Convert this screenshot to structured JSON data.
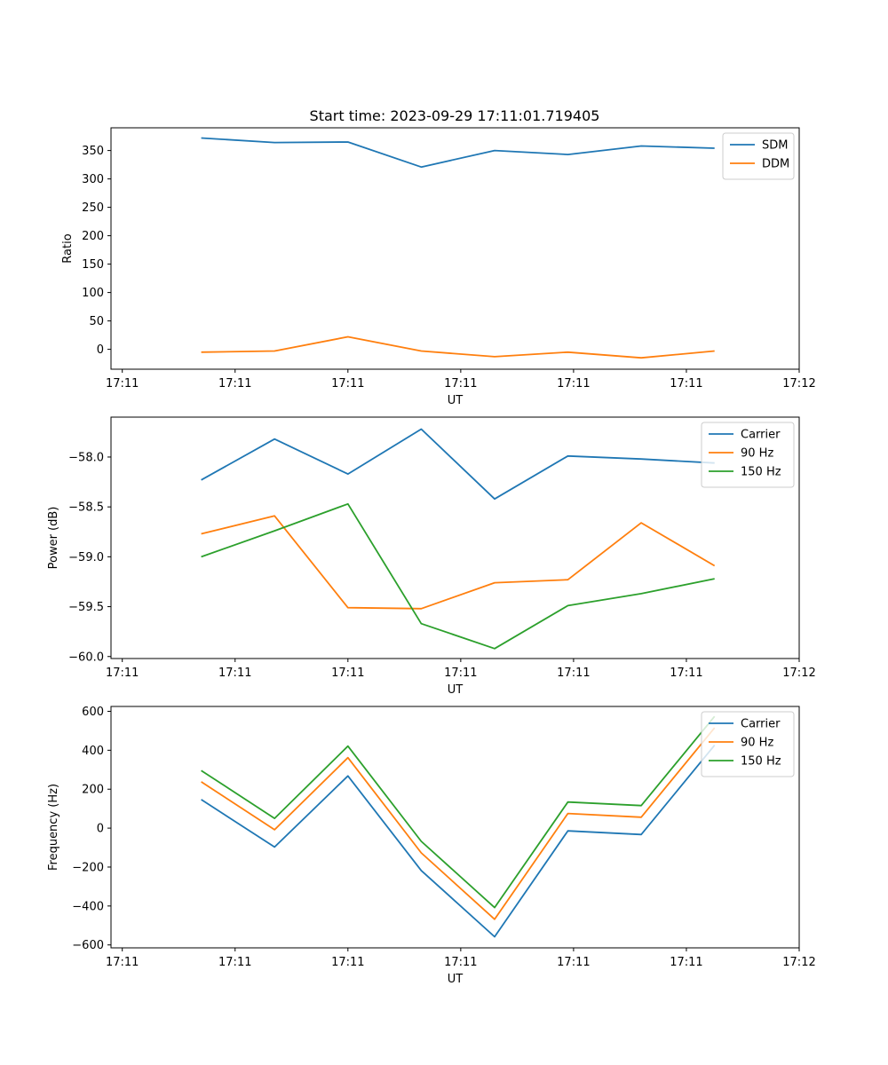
{
  "title": "Start time: 2023-09-29 17:11:01.719405",
  "colors": {
    "blue": "#1f77b4",
    "orange": "#ff7f0e",
    "green": "#2ca02c"
  },
  "chart_data": [
    {
      "type": "line",
      "title": "Start time: 2023-09-29 17:11:01.719405",
      "xlabel": "UT",
      "ylabel": "Ratio",
      "x": [
        0.7,
        1.35,
        2.0,
        2.65,
        3.3,
        3.95,
        4.6,
        5.25
      ],
      "xlim": [
        -0.1,
        6.0
      ],
      "xticks": [
        0,
        1,
        2,
        3,
        4,
        5,
        6
      ],
      "xtick_labels": [
        "17:11",
        "17:11",
        "17:11",
        "17:11",
        "17:11",
        "17:11",
        "17:12"
      ],
      "ylim": [
        -35,
        390
      ],
      "yticks": [
        0,
        50,
        100,
        150,
        200,
        250,
        300,
        350
      ],
      "ytick_labels": [
        "0",
        "50",
        "100",
        "150",
        "200",
        "250",
        "300",
        "350"
      ],
      "legend_position": "top-right",
      "series": [
        {
          "name": "SDM",
          "color": "#1f77b4",
          "values": [
            372,
            364,
            365,
            321,
            350,
            343,
            358,
            354
          ]
        },
        {
          "name": "DDM",
          "color": "#ff7f0e",
          "values": [
            -5,
            -3,
            22,
            -3,
            -13,
            -5,
            -15,
            -3
          ]
        }
      ]
    },
    {
      "type": "line",
      "title": "",
      "xlabel": "UT",
      "ylabel": "Power (dB)",
      "x": [
        0.7,
        1.35,
        2.0,
        2.65,
        3.3,
        3.95,
        4.6,
        5.25
      ],
      "xlim": [
        -0.1,
        6.0
      ],
      "xticks": [
        0,
        1,
        2,
        3,
        4,
        5,
        6
      ],
      "xtick_labels": [
        "17:11",
        "17:11",
        "17:11",
        "17:11",
        "17:11",
        "17:11",
        "17:12"
      ],
      "ylim": [
        -60.02,
        -57.6
      ],
      "yticks": [
        -60.0,
        -59.5,
        -59.0,
        -58.5,
        -58.0
      ],
      "ytick_labels": [
        "−60.0",
        "−59.5",
        "−59.0",
        "−58.5",
        "−58.0"
      ],
      "legend_position": "top-right",
      "series": [
        {
          "name": "Carrier",
          "color": "#1f77b4",
          "values": [
            -58.23,
            -57.82,
            -58.17,
            -57.72,
            -58.42,
            -57.99,
            -58.02,
            -58.06
          ]
        },
        {
          "name": "90 Hz",
          "color": "#ff7f0e",
          "values": [
            -58.77,
            -58.59,
            -59.51,
            -59.52,
            -59.26,
            -59.23,
            -58.66,
            -59.09
          ]
        },
        {
          "name": "150 Hz",
          "color": "#2ca02c",
          "values": [
            -59.0,
            -58.74,
            -58.47,
            -59.67,
            -59.92,
            -59.49,
            -59.37,
            -59.22
          ]
        }
      ]
    },
    {
      "type": "line",
      "title": "",
      "xlabel": "UT",
      "ylabel": "Frequency (Hz)",
      "x": [
        0.7,
        1.35,
        2.0,
        2.65,
        3.3,
        3.95,
        4.6,
        5.25
      ],
      "xlim": [
        -0.1,
        6.0
      ],
      "xticks": [
        0,
        1,
        2,
        3,
        4,
        5,
        6
      ],
      "xtick_labels": [
        "17:11",
        "17:11",
        "17:11",
        "17:11",
        "17:11",
        "17:11",
        "17:12"
      ],
      "ylim": [
        -615,
        625
      ],
      "yticks": [
        -600,
        -400,
        -200,
        0,
        200,
        400,
        600
      ],
      "ytick_labels": [
        "−600",
        "−400",
        "−200",
        "0",
        "200",
        "400",
        "600"
      ],
      "legend_position": "top-right",
      "series": [
        {
          "name": "Carrier",
          "color": "#1f77b4",
          "values": [
            147,
            -97,
            268,
            -218,
            -558,
            -14,
            -33,
            426
          ]
        },
        {
          "name": "90 Hz",
          "color": "#ff7f0e",
          "values": [
            238,
            -8,
            362,
            -127,
            -468,
            75,
            56,
            515
          ]
        },
        {
          "name": "150 Hz",
          "color": "#2ca02c",
          "values": [
            296,
            50,
            421,
            -68,
            -408,
            134,
            116,
            574
          ]
        }
      ]
    }
  ]
}
